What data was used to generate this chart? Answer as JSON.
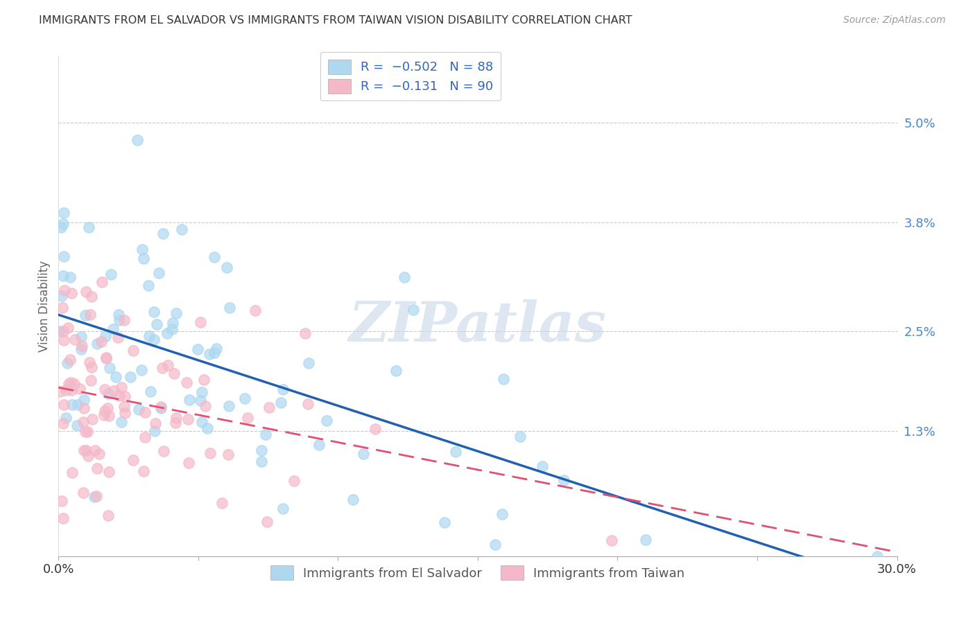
{
  "title": "IMMIGRANTS FROM EL SALVADOR VS IMMIGRANTS FROM TAIWAN VISION DISABILITY CORRELATION CHART",
  "source": "Source: ZipAtlas.com",
  "ylabel": "Vision Disability",
  "yticks": [
    "1.3%",
    "2.5%",
    "3.8%",
    "5.0%"
  ],
  "ytick_vals": [
    0.013,
    0.025,
    0.038,
    0.05
  ],
  "xlim": [
    0.0,
    0.3
  ],
  "ylim": [
    -0.002,
    0.058
  ],
  "legend_entry1": "R =  −0.502   N = 88",
  "legend_entry2": "R =  −0.131   N = 90",
  "legend_label1": "Immigrants from El Salvador",
  "legend_label2": "Immigrants from Taiwan",
  "color_blue": "#ADD8F0",
  "color_pink": "#F5B8C8",
  "line_color_blue": "#2060B0",
  "line_color_pink": "#E05070",
  "watermark": "ZIPatlas",
  "watermark_color": "#C8D8E8",
  "R1": -0.502,
  "N1": 88,
  "R2": -0.131,
  "N2": 90,
  "background_color": "#FFFFFF",
  "grid_color": "#BBBBBB"
}
